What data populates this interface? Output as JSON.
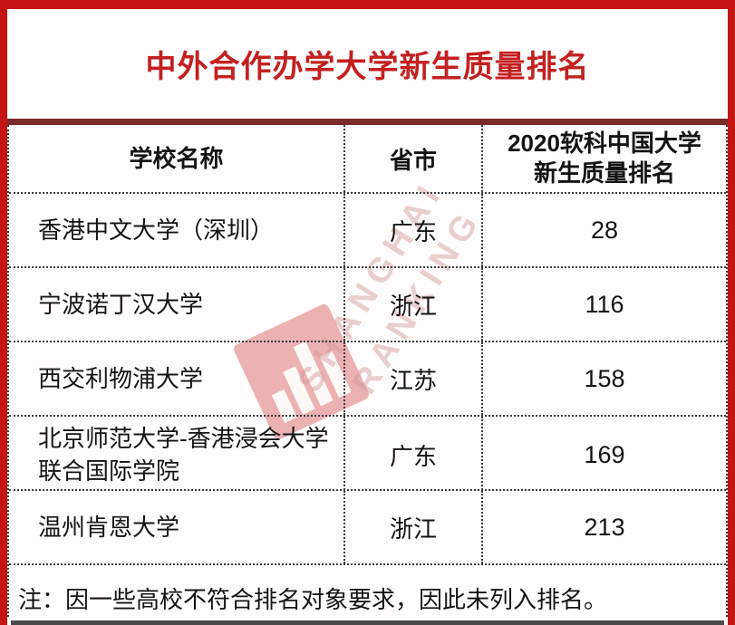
{
  "title": "中外合作办学大学新生质量排名",
  "table": {
    "header": {
      "school": "学校名称",
      "province": "省市",
      "rank_line1": "2020软科中国大学",
      "rank_line2": "新生质量排名"
    },
    "rows": [
      {
        "school": "香港中文大学（深圳）",
        "province": "广东",
        "rank": "28"
      },
      {
        "school": "宁波诺丁汉大学",
        "province": "浙江",
        "rank": "116"
      },
      {
        "school": "西交利物浦大学",
        "province": "江苏",
        "rank": "158"
      },
      {
        "school": "北京师范大学-香港浸会大学联合国际学院",
        "province": "广东",
        "rank": "169"
      },
      {
        "school": "温州肯恩大学",
        "province": "浙江",
        "rank": "213"
      }
    ]
  },
  "note": "注：因一些高校不符合排名对象要求，因此未列入排名。",
  "watermark": {
    "line1": "SHANGHAI",
    "line2": "RANKING"
  },
  "colors": {
    "frame_red": "#c41414",
    "title_red": "#c32020",
    "maroon_band": "#7c2b2b",
    "text": "#141414",
    "watermark_pink": "#d09494",
    "bottom_strip": "#4a4a4a"
  }
}
